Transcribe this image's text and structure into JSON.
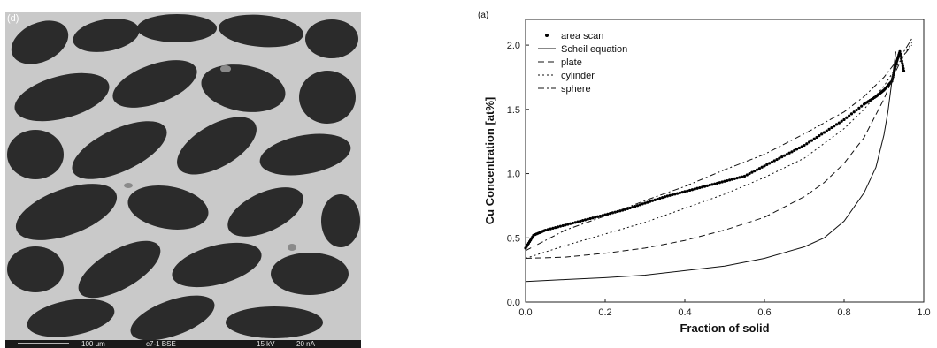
{
  "micrograph": {
    "panel_label": "(d)",
    "scale_text": "100 μm",
    "sample_text": "c7-1 BSE",
    "voltage_text": "15 kV",
    "current_text": "20 nA"
  },
  "chart_data": {
    "type": "line",
    "panel_label": "(a)",
    "xlabel": "Fraction of solid",
    "ylabel": "Cu Concentration [at%]",
    "xlim": [
      0.0,
      1.0
    ],
    "ylim": [
      0.0,
      2.2
    ],
    "xticks": [
      0.0,
      0.2,
      0.4,
      0.6,
      0.8,
      1.0
    ],
    "xtick_labels": [
      "0.0",
      "0.2",
      "0.4",
      "0.6",
      "0.8",
      "1.0"
    ],
    "yticks": [
      0.0,
      0.5,
      1.0,
      1.5,
      2.0
    ],
    "ytick_labels": [
      "0.0",
      "0.5",
      "1.0",
      "1.5",
      "2.0"
    ],
    "grid": false,
    "legend_position": "top-left",
    "series": [
      {
        "name": "area scan",
        "style": "dots",
        "x": [
          0.0,
          0.02,
          0.05,
          0.1,
          0.15,
          0.2,
          0.25,
          0.3,
          0.35,
          0.4,
          0.45,
          0.5,
          0.55,
          0.6,
          0.65,
          0.7,
          0.75,
          0.8,
          0.85,
          0.88,
          0.9,
          0.92,
          0.93,
          0.94,
          0.95
        ],
        "y": [
          0.42,
          0.52,
          0.56,
          0.6,
          0.64,
          0.68,
          0.72,
          0.77,
          0.82,
          0.86,
          0.9,
          0.94,
          0.98,
          1.06,
          1.14,
          1.22,
          1.32,
          1.42,
          1.54,
          1.6,
          1.65,
          1.72,
          1.85,
          1.95,
          1.8
        ]
      },
      {
        "name": "Scheil equation",
        "style": "solid",
        "x": [
          0.0,
          0.1,
          0.2,
          0.3,
          0.4,
          0.5,
          0.6,
          0.7,
          0.75,
          0.8,
          0.85,
          0.88,
          0.9,
          0.91,
          0.92,
          0.93
        ],
        "y": [
          0.16,
          0.175,
          0.19,
          0.21,
          0.245,
          0.28,
          0.34,
          0.43,
          0.5,
          0.63,
          0.85,
          1.05,
          1.3,
          1.48,
          1.72,
          1.95
        ]
      },
      {
        "name": "plate",
        "style": "dashed",
        "x": [
          0.0,
          0.1,
          0.2,
          0.3,
          0.4,
          0.5,
          0.6,
          0.7,
          0.75,
          0.8,
          0.85,
          0.9,
          0.93,
          0.95,
          0.97
        ],
        "y": [
          0.34,
          0.35,
          0.38,
          0.42,
          0.48,
          0.56,
          0.66,
          0.82,
          0.93,
          1.08,
          1.28,
          1.58,
          1.8,
          1.92,
          2.0
        ]
      },
      {
        "name": "cylinder",
        "style": "dotted",
        "x": [
          0.0,
          0.1,
          0.2,
          0.3,
          0.4,
          0.5,
          0.6,
          0.7,
          0.8,
          0.85,
          0.9,
          0.95,
          0.97
        ],
        "y": [
          0.34,
          0.44,
          0.53,
          0.62,
          0.73,
          0.84,
          0.97,
          1.12,
          1.35,
          1.5,
          1.68,
          1.92,
          2.02
        ]
      },
      {
        "name": "sphere",
        "style": "dashdot",
        "x": [
          0.0,
          0.1,
          0.2,
          0.3,
          0.4,
          0.5,
          0.6,
          0.7,
          0.8,
          0.85,
          0.9,
          0.95,
          0.97
        ],
        "y": [
          0.4,
          0.56,
          0.67,
          0.79,
          0.9,
          1.03,
          1.15,
          1.31,
          1.48,
          1.6,
          1.75,
          1.95,
          2.05
        ]
      }
    ]
  }
}
